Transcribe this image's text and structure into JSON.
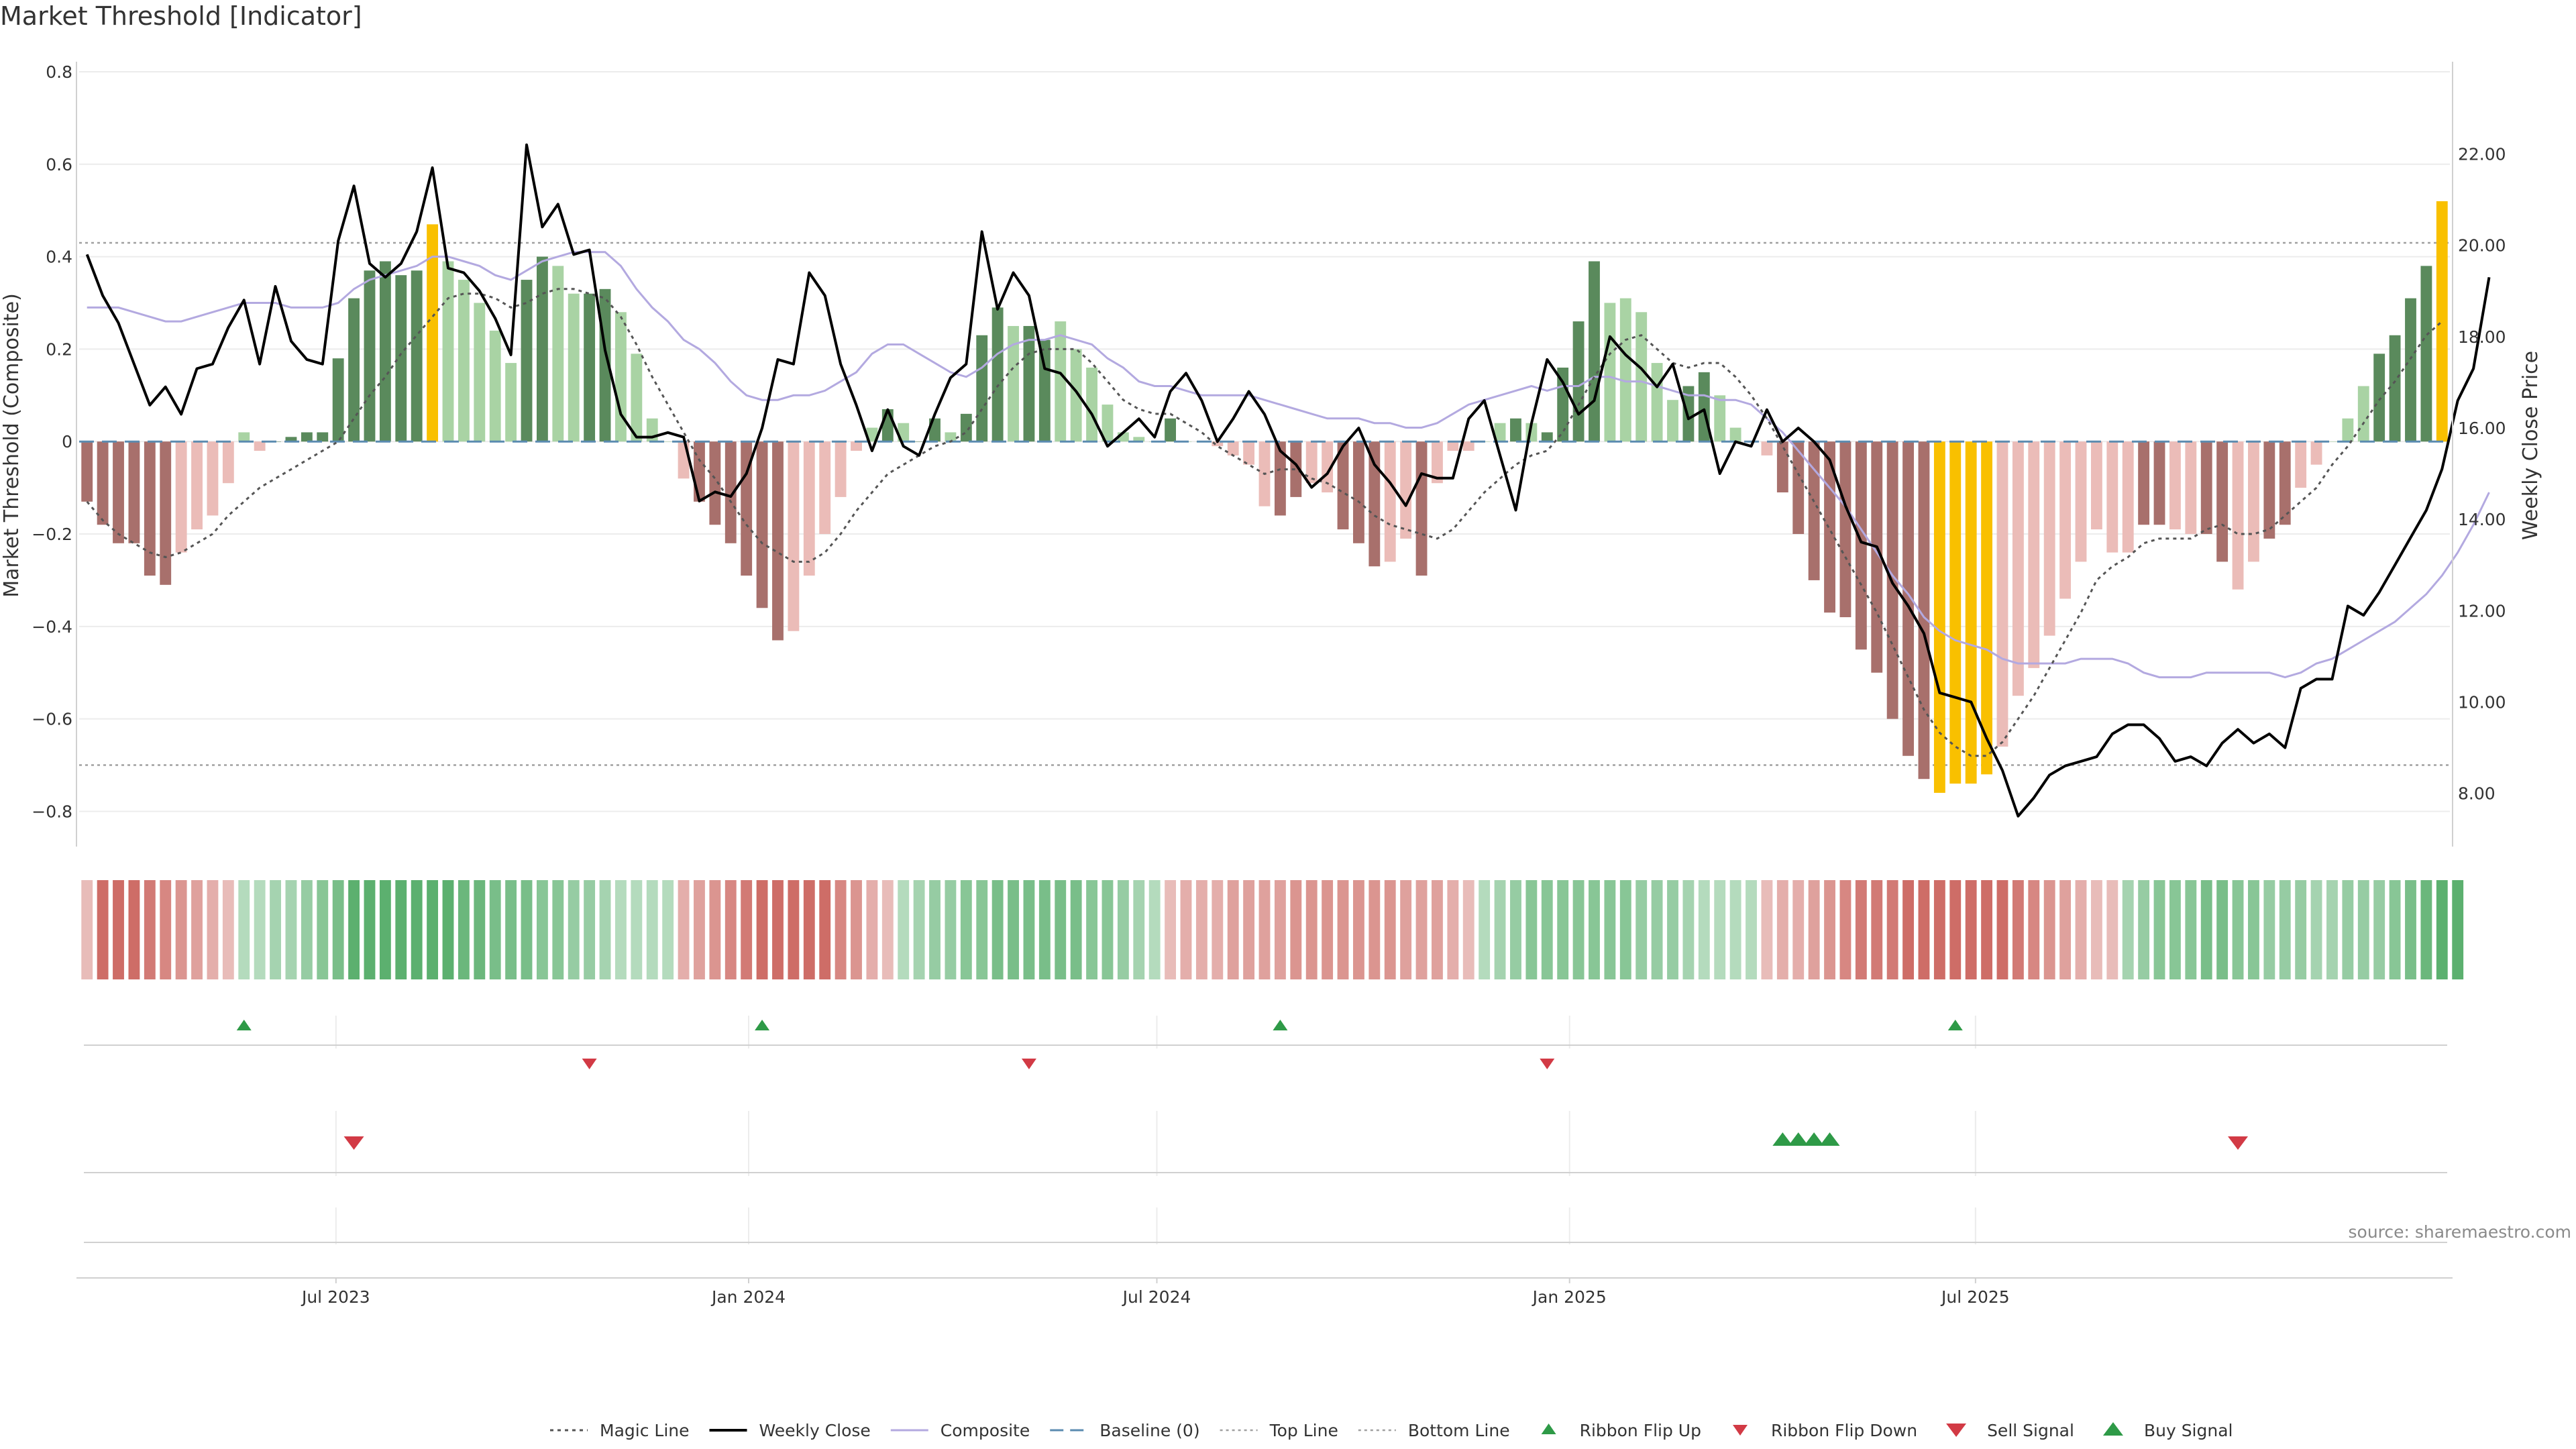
{
  "title": "Market Threshold [Indicator]",
  "source": "source: sharemaestro.com",
  "colors": {
    "bull_strong": "#5a8a5c",
    "bull_light": "#a9d3a4",
    "bear_strong": "#a8706c",
    "bear_light": "#ebbcb8",
    "extreme": "#f9c000",
    "weekly_close": "#000000",
    "composite": "#b3a9e0",
    "magic": "#555555",
    "ref_line": "#a0a0a0",
    "baseline": "#5b8bb0",
    "buy": "#2e9a47",
    "sell": "#d23a45"
  },
  "chart_data": {
    "type": "bar",
    "left_axis": {
      "label": "Market Threshold (Composite)",
      "ylim": [
        -0.84,
        0.8
      ],
      "ticks": [
        0.8,
        0.6,
        0.4,
        0.2,
        0,
        -0.2,
        -0.4,
        -0.6,
        -0.8
      ],
      "tick_labels": [
        "0.8",
        "0.6",
        "0.4",
        "0.2",
        "0",
        "−0.2",
        "−0.4",
        "−0.6",
        "−0.8"
      ]
    },
    "right_axis": {
      "label": "Weekly Close Price",
      "ylim": [
        7.2,
        23.8
      ],
      "ticks": [
        22,
        20,
        18,
        16,
        14,
        12,
        10,
        8
      ],
      "tick_labels": [
        "22.00",
        "20.00",
        "18.00",
        "16.00",
        "14.00",
        "12.00",
        "10.00",
        "8.00"
      ]
    },
    "x_axis": {
      "ticks": [
        "2023-07-01",
        "2024-01-01",
        "2024-07-01",
        "2025-01-01",
        "2025-07-01"
      ],
      "tick_labels": [
        "Jul 2023",
        "Jan 2024",
        "Jul 2024",
        "Jan 2025",
        "Jul 2025"
      ]
    },
    "top_line": 0.43,
    "bottom_line": -0.7,
    "baseline": 0,
    "start_date": "2023-03-12",
    "week_interval_days": 7,
    "composite_bars": [
      -0.13,
      -0.18,
      -0.22,
      -0.22,
      -0.29,
      -0.31,
      -0.24,
      -0.19,
      -0.16,
      -0.09,
      0.02,
      -0.02,
      0.0,
      0.01,
      0.02,
      0.02,
      0.18,
      0.31,
      0.37,
      0.39,
      0.36,
      0.37,
      0.47,
      0.39,
      0.35,
      0.3,
      0.24,
      0.17,
      0.35,
      0.4,
      0.38,
      0.32,
      0.32,
      0.33,
      0.28,
      0.19,
      0.05,
      0.0,
      -0.08,
      -0.13,
      -0.18,
      -0.22,
      -0.29,
      -0.36,
      -0.43,
      -0.41,
      -0.29,
      -0.2,
      -0.12,
      -0.02,
      0.03,
      0.07,
      0.04,
      0.0,
      0.05,
      0.02,
      0.06,
      0.23,
      0.29,
      0.25,
      0.25,
      0.22,
      0.26,
      0.2,
      0.16,
      0.08,
      0.02,
      0.01,
      0.0,
      0.05,
      0.0,
      0.0,
      -0.01,
      -0.03,
      -0.05,
      -0.14,
      -0.16,
      -0.12,
      -0.09,
      -0.11,
      -0.19,
      -0.22,
      -0.27,
      -0.26,
      -0.21,
      -0.29,
      -0.09,
      -0.02,
      -0.02,
      0.0,
      0.04,
      0.05,
      0.04,
      0.02,
      0.16,
      0.26,
      0.39,
      0.3,
      0.31,
      0.28,
      0.17,
      0.09,
      0.12,
      0.15,
      0.1,
      0.03,
      0.0,
      -0.03,
      -0.11,
      -0.2,
      -0.3,
      -0.37,
      -0.38,
      -0.45,
      -0.5,
      -0.6,
      -0.68,
      -0.73,
      -0.76,
      -0.74,
      -0.74,
      -0.72,
      -0.66,
      -0.55,
      -0.49,
      -0.42,
      -0.34,
      -0.26,
      -0.19,
      -0.24,
      -0.24,
      -0.18,
      -0.18,
      -0.19,
      -0.2,
      -0.2,
      -0.26,
      -0.32,
      -0.26,
      -0.21,
      -0.18,
      -0.1,
      -0.05,
      0.0,
      0.05,
      0.12,
      0.19,
      0.23,
      0.31,
      0.38,
      0.52
    ],
    "bar_strength": [
      "s",
      "s",
      "s",
      "s",
      "s",
      "s",
      "l",
      "l",
      "l",
      "l",
      "l",
      "l",
      "s",
      "s",
      "s",
      "s",
      "s",
      "s",
      "s",
      "s",
      "s",
      "s",
      "x",
      "l",
      "l",
      "l",
      "l",
      "l",
      "s",
      "s",
      "l",
      "l",
      "s",
      "s",
      "l",
      "l",
      "l",
      "l",
      "l",
      "s",
      "s",
      "s",
      "s",
      "s",
      "s",
      "l",
      "l",
      "l",
      "l",
      "l",
      "l",
      "s",
      "l",
      "s",
      "s",
      "l",
      "s",
      "s",
      "s",
      "l",
      "s",
      "s",
      "l",
      "l",
      "l",
      "l",
      "l",
      "l",
      "l",
      "s",
      "l",
      "l",
      "l",
      "l",
      "l",
      "l",
      "s",
      "s",
      "l",
      "l",
      "s",
      "s",
      "s",
      "l",
      "l",
      "s",
      "l",
      "l",
      "l",
      "l",
      "l",
      "s",
      "l",
      "s",
      "s",
      "s",
      "s",
      "l",
      "l",
      "l",
      "l",
      "l",
      "s",
      "s",
      "l",
      "l",
      "l",
      "l",
      "s",
      "s",
      "s",
      "s",
      "s",
      "s",
      "s",
      "s",
      "s",
      "s",
      "x",
      "x",
      "x",
      "x",
      "l",
      "l",
      "l",
      "l",
      "l",
      "l",
      "l",
      "l",
      "l",
      "s",
      "s",
      "l",
      "l",
      "s",
      "s",
      "l",
      "l",
      "s",
      "s",
      "l",
      "l",
      "l",
      "l",
      "l",
      "s",
      "s",
      "s",
      "s",
      "x",
      "x"
    ],
    "magic_line": [
      -0.13,
      -0.17,
      -0.2,
      -0.22,
      -0.24,
      -0.25,
      -0.24,
      -0.22,
      -0.2,
      -0.16,
      -0.13,
      -0.1,
      -0.08,
      -0.06,
      -0.04,
      -0.02,
      0.0,
      0.05,
      0.1,
      0.14,
      0.19,
      0.23,
      0.27,
      0.31,
      0.32,
      0.32,
      0.31,
      0.29,
      0.3,
      0.32,
      0.33,
      0.33,
      0.32,
      0.31,
      0.27,
      0.21,
      0.14,
      0.08,
      0.02,
      -0.04,
      -0.08,
      -0.13,
      -0.18,
      -0.22,
      -0.24,
      -0.26,
      -0.26,
      -0.24,
      -0.2,
      -0.15,
      -0.11,
      -0.07,
      -0.05,
      -0.03,
      -0.01,
      0.0,
      0.02,
      0.07,
      0.12,
      0.16,
      0.19,
      0.2,
      0.2,
      0.2,
      0.17,
      0.13,
      0.09,
      0.07,
      0.06,
      0.06,
      0.04,
      0.02,
      -0.01,
      -0.03,
      -0.05,
      -0.07,
      -0.06,
      -0.06,
      -0.08,
      -0.09,
      -0.11,
      -0.13,
      -0.16,
      -0.18,
      -0.19,
      -0.2,
      -0.21,
      -0.19,
      -0.15,
      -0.11,
      -0.08,
      -0.05,
      -0.03,
      -0.02,
      0.02,
      0.08,
      0.14,
      0.19,
      0.22,
      0.23,
      0.2,
      0.17,
      0.16,
      0.17,
      0.17,
      0.14,
      0.1,
      0.05,
      -0.01,
      -0.07,
      -0.13,
      -0.19,
      -0.25,
      -0.31,
      -0.37,
      -0.44,
      -0.51,
      -0.58,
      -0.63,
      -0.66,
      -0.68,
      -0.68,
      -0.65,
      -0.6,
      -0.55,
      -0.49,
      -0.43,
      -0.37,
      -0.3,
      -0.27,
      -0.25,
      -0.22,
      -0.21,
      -0.21,
      -0.21,
      -0.19,
      -0.18,
      -0.2,
      -0.2,
      -0.19,
      -0.16,
      -0.13,
      -0.1,
      -0.05,
      -0.01,
      0.04,
      0.09,
      0.13,
      0.18,
      0.23,
      0.26
    ],
    "composite_line": [
      0.29,
      0.29,
      0.29,
      0.28,
      0.27,
      0.26,
      0.26,
      0.27,
      0.28,
      0.29,
      0.3,
      0.3,
      0.3,
      0.29,
      0.29,
      0.29,
      0.3,
      0.33,
      0.35,
      0.36,
      0.37,
      0.38,
      0.4,
      0.4,
      0.39,
      0.38,
      0.36,
      0.35,
      0.37,
      0.39,
      0.4,
      0.41,
      0.41,
      0.41,
      0.38,
      0.33,
      0.29,
      0.26,
      0.22,
      0.2,
      0.17,
      0.13,
      0.1,
      0.09,
      0.09,
      0.1,
      0.1,
      0.11,
      0.13,
      0.15,
      0.19,
      0.21,
      0.21,
      0.19,
      0.17,
      0.15,
      0.14,
      0.16,
      0.19,
      0.21,
      0.22,
      0.22,
      0.23,
      0.22,
      0.21,
      0.18,
      0.16,
      0.13,
      0.12,
      0.12,
      0.11,
      0.1,
      0.1,
      0.1,
      0.1,
      0.09,
      0.08,
      0.07,
      0.06,
      0.05,
      0.05,
      0.05,
      0.04,
      0.04,
      0.03,
      0.03,
      0.04,
      0.06,
      0.08,
      0.09,
      0.1,
      0.11,
      0.12,
      0.11,
      0.12,
      0.12,
      0.14,
      0.14,
      0.13,
      0.13,
      0.12,
      0.11,
      0.1,
      0.1,
      0.09,
      0.09,
      0.08,
      0.05,
      0.02,
      -0.02,
      -0.06,
      -0.1,
      -0.14,
      -0.19,
      -0.24,
      -0.29,
      -0.33,
      -0.38,
      -0.41,
      -0.43,
      -0.44,
      -0.45,
      -0.47,
      -0.48,
      -0.48,
      -0.48,
      -0.48,
      -0.47,
      -0.47,
      -0.47,
      -0.48,
      -0.5,
      -0.51,
      -0.51,
      -0.51,
      -0.5,
      -0.5,
      -0.5,
      -0.5,
      -0.5,
      -0.51,
      -0.5,
      -0.48,
      -0.47,
      -0.45,
      -0.43,
      -0.41,
      -0.39,
      -0.36,
      -0.33,
      -0.29,
      -0.24,
      -0.18,
      -0.11
    ],
    "weekly_close": [
      19.8,
      18.9,
      18.3,
      17.4,
      16.5,
      16.9,
      16.3,
      17.3,
      17.4,
      18.2,
      18.8,
      17.4,
      19.1,
      17.9,
      17.5,
      17.4,
      20.1,
      21.3,
      19.6,
      19.3,
      19.6,
      20.3,
      21.7,
      19.5,
      19.4,
      19.0,
      18.4,
      17.6,
      22.2,
      20.4,
      20.9,
      19.8,
      19.9,
      17.7,
      16.3,
      15.8,
      15.8,
      15.9,
      15.8,
      14.4,
      14.6,
      14.5,
      15.0,
      16.0,
      17.5,
      17.4,
      19.4,
      18.9,
      17.4,
      16.5,
      15.5,
      16.4,
      15.6,
      15.4,
      16.3,
      17.1,
      17.4,
      20.3,
      18.6,
      19.4,
      18.9,
      17.3,
      17.2,
      16.8,
      16.3,
      15.6,
      15.9,
      16.2,
      15.8,
      16.8,
      17.2,
      16.6,
      15.7,
      16.2,
      16.8,
      16.3,
      15.5,
      15.2,
      14.7,
      15.0,
      15.6,
      16.0,
      15.2,
      14.8,
      14.3,
      15.0,
      14.9,
      14.9,
      16.2,
      16.6,
      15.4,
      14.2,
      16.1,
      17.5,
      17.0,
      16.3,
      16.6,
      18.0,
      17.6,
      17.3,
      16.9,
      17.4,
      16.2,
      16.4,
      15.0,
      15.7,
      15.6,
      16.4,
      15.7,
      16.0,
      15.7,
      15.3,
      14.3,
      13.5,
      13.4,
      12.6,
      12.1,
      11.5,
      10.2,
      10.1,
      10.0,
      9.2,
      8.5,
      7.5,
      7.9,
      8.4,
      8.6,
      8.7,
      8.8,
      9.3,
      9.5,
      9.5,
      9.2,
      8.7,
      8.8,
      8.6,
      9.1,
      9.4,
      9.1,
      9.3,
      9.0,
      10.3,
      10.5,
      10.5,
      12.1,
      11.9,
      12.4,
      13.0,
      13.6,
      14.2,
      15.1,
      16.6,
      17.3,
      19.3
    ],
    "ribbon": [
      -0.3,
      -0.9,
      -0.9,
      -0.9,
      -0.8,
      -0.7,
      -0.6,
      -0.5,
      -0.4,
      -0.3,
      0.3,
      0.3,
      0.4,
      0.4,
      0.5,
      0.6,
      0.7,
      0.9,
      0.9,
      0.9,
      0.9,
      0.9,
      0.9,
      0.9,
      0.8,
      0.8,
      0.7,
      0.7,
      0.7,
      0.6,
      0.6,
      0.5,
      0.5,
      0.4,
      0.3,
      0.3,
      0.3,
      0.3,
      -0.4,
      -0.5,
      -0.6,
      -0.7,
      -0.8,
      -0.9,
      -0.9,
      -0.9,
      -0.9,
      -0.9,
      -0.7,
      -0.6,
      -0.4,
      -0.3,
      0.3,
      0.4,
      0.5,
      0.5,
      0.6,
      0.6,
      0.7,
      0.7,
      0.7,
      0.7,
      0.7,
      0.7,
      0.6,
      0.6,
      0.5,
      0.4,
      0.3,
      -0.3,
      -0.4,
      -0.4,
      -0.4,
      -0.5,
      -0.5,
      -0.5,
      -0.5,
      -0.6,
      -0.6,
      -0.6,
      -0.6,
      -0.6,
      -0.6,
      -0.6,
      -0.5,
      -0.5,
      -0.5,
      -0.4,
      -0.3,
      0.3,
      0.4,
      0.5,
      0.6,
      0.6,
      0.6,
      0.6,
      0.6,
      0.6,
      0.6,
      0.5,
      0.5,
      0.5,
      0.4,
      0.3,
      0.3,
      0.3,
      0.3,
      -0.3,
      -0.4,
      -0.4,
      -0.5,
      -0.6,
      -0.7,
      -0.8,
      -0.8,
      -0.8,
      -0.9,
      -0.9,
      -0.9,
      -0.9,
      -0.9,
      -0.9,
      -0.9,
      -0.8,
      -0.7,
      -0.6,
      -0.5,
      -0.4,
      -0.3,
      -0.3,
      0.4,
      0.5,
      0.6,
      0.6,
      0.6,
      0.7,
      0.7,
      0.6,
      0.6,
      0.5,
      0.5,
      0.5,
      0.4,
      0.4,
      0.5,
      0.5,
      0.5,
      0.6,
      0.7,
      0.8,
      0.9,
      0.9
    ],
    "ribbon_flip_up": [
      "2023-05-21",
      "2024-01-07",
      "2024-08-25",
      "2025-06-22"
    ],
    "ribbon_flip_down": [
      "2023-10-22",
      "2024-05-05",
      "2024-12-22"
    ],
    "sell_signal": [
      "2023-07-09",
      "2025-10-26"
    ],
    "buy_signal": [
      "2025-04-06",
      "2025-04-13",
      "2025-04-20",
      "2025-04-27"
    ]
  },
  "legend": [
    {
      "label": "Magic Line",
      "kind": "dotted"
    },
    {
      "label": "Weekly Close",
      "kind": "solid"
    },
    {
      "label": "Composite",
      "kind": "composite"
    },
    {
      "label": "Baseline (0)",
      "kind": "dashed"
    },
    {
      "label": "Top Line",
      "kind": "ref"
    },
    {
      "label": "Bottom Line",
      "kind": "ref"
    },
    {
      "label": "Ribbon Flip Up",
      "kind": "tri-up-small"
    },
    {
      "label": "Ribbon Flip Down",
      "kind": "tri-down-small"
    },
    {
      "label": "Sell Signal",
      "kind": "tri-down"
    },
    {
      "label": "Buy Signal",
      "kind": "tri-up"
    }
  ]
}
